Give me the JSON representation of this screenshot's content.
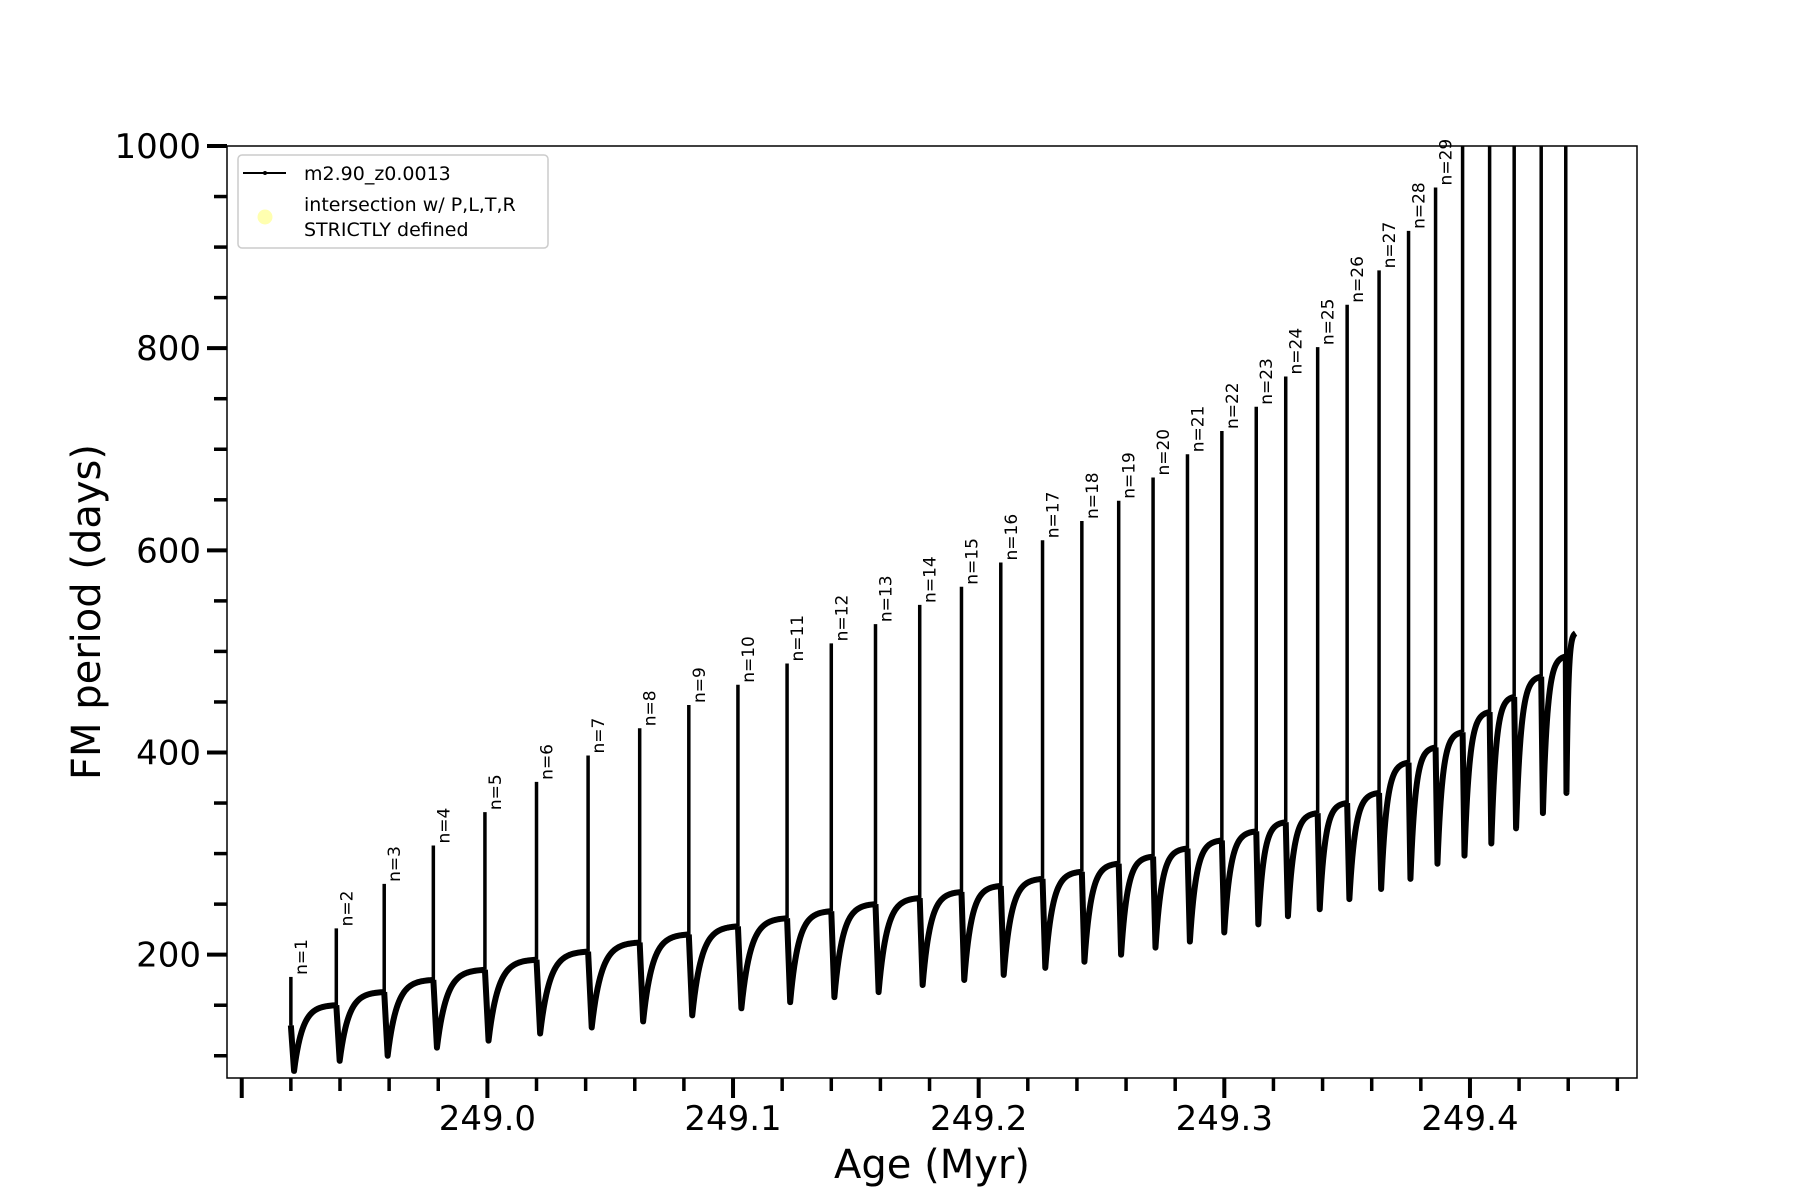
{
  "chart_data": {
    "type": "line",
    "xlabel": "Age (Myr)",
    "ylabel": "FM period (days)",
    "xlim": [
      248.894,
      249.468
    ],
    "ylim": [
      78,
      1000
    ],
    "x_ticks": [
      249.0,
      249.1,
      249.2,
      249.3,
      249.4
    ],
    "x_tick_labels": [
      "249.0",
      "249.1",
      "249.2",
      "249.3",
      "249.4"
    ],
    "y_ticks": [
      200,
      400,
      600,
      800,
      1000
    ],
    "y_tick_labels": [
      "200",
      "400",
      "600",
      "800",
      "1000"
    ],
    "grid": false,
    "legend_placement": "top-left",
    "legend": [
      {
        "label": "m2.90_z0.0013",
        "marker": "line",
        "color": "#000000"
      },
      {
        "label_lines": [
          "intersection w/ P,L,T,R",
          "STRICTLY defined"
        ],
        "marker": "circle",
        "color": "#ffffb0"
      }
    ],
    "series_color": "#000000",
    "pulses": {
      "labels": [
        "n=1",
        "n=2",
        "n=3",
        "n=4",
        "n=5",
        "n=6",
        "n=7",
        "n=8",
        "n=9",
        "n=10",
        "n=11",
        "n=12",
        "n=13",
        "n=14",
        "n=15",
        "n=16",
        "n=17",
        "n=18",
        "n=19",
        "n=20",
        "n=21",
        "n=22",
        "n=23",
        "n=24",
        "n=25",
        "n=26",
        "n=27",
        "n=28",
        "n=29"
      ],
      "age": [
        248.92,
        248.9385,
        248.958,
        248.978,
        248.999,
        249.02,
        249.041,
        249.062,
        249.082,
        249.102,
        249.122,
        249.14,
        249.158,
        249.176,
        249.193,
        249.209,
        249.226,
        249.242,
        249.257,
        249.271,
        249.285,
        249.299,
        249.313,
        249.325,
        249.338,
        249.35,
        249.363,
        249.375,
        249.386,
        249.397,
        249.408,
        249.418,
        249.429,
        249.439
      ],
      "peak": [
        178,
        226,
        270,
        308,
        341,
        371,
        397,
        424,
        447,
        467,
        488,
        508,
        527,
        546,
        564,
        588,
        610,
        629,
        649,
        672,
        695,
        718,
        742,
        772,
        801,
        843,
        877,
        916,
        959,
        1200,
        1200,
        1200,
        1200,
        1200
      ],
      "trough": [
        85,
        95,
        100,
        108,
        115,
        122,
        128,
        134,
        140,
        147,
        153,
        158,
        163,
        170,
        175,
        180,
        187,
        193,
        200,
        207,
        213,
        222,
        230,
        238,
        245,
        255,
        265,
        275,
        290,
        298,
        310,
        325,
        340,
        360
      ],
      "plateau": [
        150,
        163,
        175,
        185,
        195,
        203,
        212,
        220,
        228,
        236,
        243,
        250,
        256,
        262,
        268,
        275,
        282,
        290,
        297,
        305,
        313,
        322,
        331,
        340,
        350,
        360,
        390,
        405,
        420,
        440,
        455,
        475,
        495,
        518
      ],
      "start_value": 130,
      "end_age": 249.443,
      "end_value": 510
    }
  }
}
